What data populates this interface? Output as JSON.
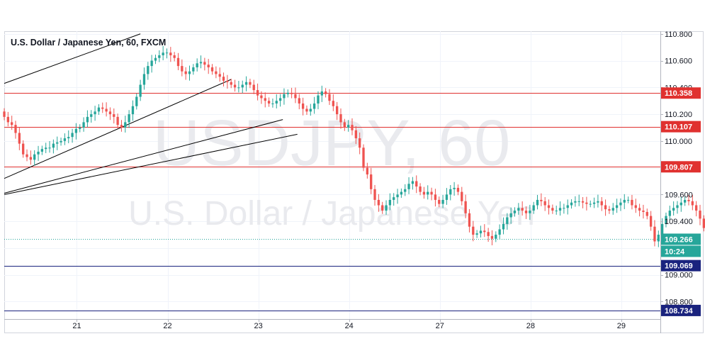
{
  "header": {
    "title": "U.S. Dollar / Japanese Yen, 60, FXCM"
  },
  "watermark": {
    "symbol": "USDJPY, 60",
    "name": "U.S. Dollar / Japanese Yen"
  },
  "colors": {
    "up": "#26a69a",
    "down": "#ef5350",
    "resistance": "#e0312f",
    "support": "#1a237e",
    "trendline": "#000000",
    "price_label": "#26a69a"
  },
  "chart_data": {
    "type": "candlestick",
    "title": "U.S. Dollar / Japanese Yen, 60, FXCM",
    "xlabel": "",
    "ylabel": "",
    "ylim": [
      108.67,
      110.82
    ],
    "x_ticks": [
      {
        "label": "21",
        "x": 20.0
      },
      {
        "label": "22",
        "x": 21.0
      },
      {
        "label": "23",
        "x": 22.0
      },
      {
        "label": "24",
        "x": 23.0
      },
      {
        "label": "27",
        "x": 24.0
      },
      {
        "label": "28",
        "x": 25.0
      },
      {
        "label": "29",
        "x": 26.0
      }
    ],
    "xlim": [
      19.2,
      26.43
    ],
    "y_ticks": [
      "110.800",
      "110.600",
      "110.400",
      "110.200",
      "110.000",
      "109.800",
      "109.600",
      "109.400",
      "109.200",
      "109.000",
      "108.800"
    ],
    "y_tick_values": [
      110.8,
      110.6,
      110.4,
      110.2,
      110.0,
      109.8,
      109.6,
      109.4,
      109.2,
      109.0,
      108.8
    ],
    "series": [
      {
        "x_start": 19.2,
        "x_step": 0.04167,
        "opens": [
          110.22,
          110.18,
          110.14,
          110.12,
          110.06,
          109.98,
          109.9,
          109.88,
          109.86,
          109.9,
          109.92,
          109.94,
          109.95,
          109.95,
          109.98,
          109.99,
          110.0,
          110.02,
          110.03,
          110.06,
          110.09,
          110.1,
          110.14,
          110.18,
          110.2,
          110.22,
          110.25,
          110.24,
          110.22,
          110.2,
          110.18,
          110.12,
          110.1,
          110.14,
          110.2,
          110.26,
          110.33,
          110.42,
          110.5,
          110.56,
          110.6,
          110.62,
          110.64,
          110.66,
          110.66,
          110.64,
          110.62,
          110.56,
          110.52,
          110.5,
          110.52,
          110.55,
          110.58,
          110.59,
          110.57,
          110.55,
          110.52,
          110.5,
          110.48,
          110.45,
          110.44,
          110.42,
          110.4,
          110.4,
          110.42,
          110.44,
          110.42,
          110.38,
          110.34,
          110.32,
          110.3,
          110.28,
          110.28,
          110.3,
          110.32,
          110.35,
          110.36,
          110.35,
          110.32,
          110.28,
          110.24,
          110.22,
          110.24,
          110.28,
          110.34,
          110.37,
          110.35,
          110.3,
          110.26,
          110.2,
          110.14,
          110.1,
          110.12,
          110.08,
          110.02,
          109.95,
          109.8,
          109.75,
          109.64,
          109.56,
          109.52,
          109.48,
          109.52,
          109.56,
          109.58,
          109.6,
          109.62,
          109.64,
          109.68,
          109.7,
          109.66,
          109.62,
          109.6,
          109.62,
          109.6,
          109.56,
          109.53,
          109.56,
          109.6,
          109.64,
          109.65,
          109.62,
          109.55,
          109.46,
          109.36,
          109.3,
          109.31,
          109.33,
          109.32,
          109.29,
          109.27,
          109.3,
          109.34,
          109.38,
          109.43,
          109.46,
          109.48,
          109.5,
          109.48,
          109.46,
          109.48,
          109.52,
          109.56,
          109.55,
          109.52,
          109.5,
          109.48,
          109.48,
          109.5,
          109.5,
          109.52,
          109.54,
          109.55,
          109.55,
          109.54,
          109.53,
          109.53,
          109.54,
          109.55,
          109.52,
          109.49,
          109.48,
          109.5,
          109.52,
          109.54,
          109.56,
          109.56,
          109.52,
          109.5,
          109.48,
          109.47,
          109.44,
          109.36,
          109.25,
          109.3,
          109.38,
          109.44,
          109.48,
          109.5,
          109.52,
          109.54,
          109.56,
          109.55,
          109.52,
          109.48,
          109.42,
          109.35,
          109.34,
          109.33,
          109.32,
          109.31,
          109.33,
          109.3,
          109.28,
          109.27,
          109.29,
          109.34,
          109.36,
          109.33,
          109.29,
          109.24,
          109.21,
          109.22,
          109.24
        ],
        "closes": [
          110.18,
          110.14,
          110.12,
          110.06,
          109.98,
          109.9,
          109.88,
          109.86,
          109.9,
          109.92,
          109.94,
          109.95,
          109.95,
          109.98,
          109.99,
          110.0,
          110.02,
          110.03,
          110.06,
          110.09,
          110.1,
          110.14,
          110.18,
          110.2,
          110.22,
          110.25,
          110.24,
          110.22,
          110.2,
          110.18,
          110.12,
          110.1,
          110.14,
          110.2,
          110.26,
          110.33,
          110.42,
          110.5,
          110.56,
          110.6,
          110.62,
          110.64,
          110.66,
          110.66,
          110.64,
          110.62,
          110.56,
          110.52,
          110.5,
          110.52,
          110.55,
          110.58,
          110.59,
          110.57,
          110.55,
          110.52,
          110.5,
          110.48,
          110.45,
          110.44,
          110.42,
          110.4,
          110.4,
          110.42,
          110.44,
          110.42,
          110.38,
          110.34,
          110.32,
          110.3,
          110.28,
          110.28,
          110.3,
          110.32,
          110.35,
          110.36,
          110.35,
          110.32,
          110.28,
          110.24,
          110.22,
          110.24,
          110.28,
          110.34,
          110.37,
          110.35,
          110.3,
          110.26,
          110.2,
          110.14,
          110.1,
          110.12,
          110.08,
          110.02,
          109.95,
          109.8,
          109.75,
          109.64,
          109.56,
          109.52,
          109.48,
          109.52,
          109.56,
          109.58,
          109.6,
          109.62,
          109.64,
          109.68,
          109.7,
          109.66,
          109.62,
          109.6,
          109.62,
          109.6,
          109.56,
          109.53,
          109.56,
          109.6,
          109.64,
          109.65,
          109.62,
          109.55,
          109.46,
          109.36,
          109.3,
          109.31,
          109.33,
          109.32,
          109.29,
          109.27,
          109.3,
          109.34,
          109.38,
          109.43,
          109.46,
          109.48,
          109.5,
          109.48,
          109.46,
          109.48,
          109.52,
          109.56,
          109.55,
          109.52,
          109.5,
          109.48,
          109.48,
          109.5,
          109.5,
          109.52,
          109.54,
          109.55,
          109.55,
          109.54,
          109.53,
          109.53,
          109.54,
          109.55,
          109.52,
          109.49,
          109.48,
          109.5,
          109.52,
          109.54,
          109.56,
          109.56,
          109.52,
          109.5,
          109.48,
          109.47,
          109.44,
          109.36,
          109.25,
          109.3,
          109.38,
          109.44,
          109.48,
          109.5,
          109.52,
          109.54,
          109.56,
          109.55,
          109.52,
          109.48,
          109.42,
          109.35,
          109.34,
          109.33,
          109.32,
          109.31,
          109.33,
          109.3,
          109.28,
          109.27,
          109.29,
          109.34,
          109.36,
          109.33,
          109.29,
          109.24,
          109.21,
          109.22,
          109.24,
          109.266
        ]
      }
    ],
    "horizontal_levels": [
      {
        "value": 110.358,
        "label": "110.358",
        "color": "#e0312f",
        "style": "solid"
      },
      {
        "value": 110.107,
        "label": "110.107",
        "color": "#e0312f",
        "style": "solid"
      },
      {
        "value": 109.807,
        "label": "109.807",
        "color": "#e0312f",
        "style": "solid"
      },
      {
        "value": 109.069,
        "label": "109.069",
        "color": "#1a237e",
        "style": "solid"
      },
      {
        "value": 108.734,
        "label": "108.734",
        "color": "#1a237e",
        "style": "solid"
      }
    ],
    "trendlines": [
      {
        "x1": 19.2,
        "y1": 110.43,
        "x2": 19.75,
        "y2": 110.62,
        "ext_x2": 20.7,
        "ext_y2": 110.8
      },
      {
        "x1": 19.2,
        "y1": 109.72,
        "x2": 21.7,
        "y2": 110.46
      },
      {
        "x1": 19.2,
        "y1": 109.61,
        "x2": 22.27,
        "y2": 110.16
      },
      {
        "x1": 19.2,
        "y1": 109.6,
        "x2": 22.43,
        "y2": 110.05
      }
    ],
    "last_price": {
      "value": 109.266,
      "label": "109.266",
      "countdown": "10:24"
    },
    "grid": true
  }
}
